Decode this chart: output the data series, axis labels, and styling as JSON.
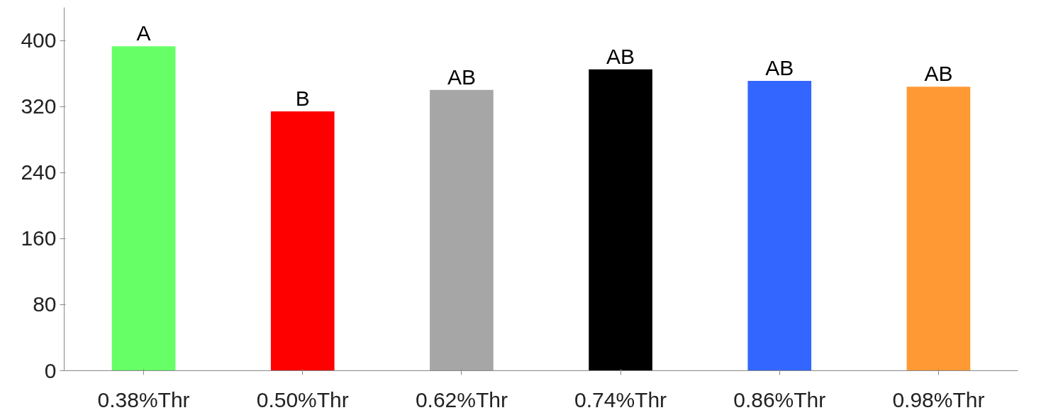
{
  "chart_data": {
    "type": "bar",
    "categories": [
      "0.38%Thr",
      "0.50%Thr",
      "0.62%Thr",
      "0.74%Thr",
      "0.86%Thr",
      "0.98%Thr"
    ],
    "values": [
      393,
      314,
      340,
      365,
      351,
      344
    ],
    "colors": [
      "#66ff66",
      "#ff0000",
      "#a6a6a6",
      "#000000",
      "#3366ff",
      "#ff9933"
    ],
    "ylim": [
      0,
      440
    ],
    "yticks": [
      0,
      80,
      160,
      240,
      320,
      400
    ],
    "grid": false,
    "annotations": [
      {
        "text": "A",
        "x": "0.38%Thr",
        "y": 393
      },
      {
        "text": "B",
        "x": "0.50%Thr",
        "y": 314
      },
      {
        "text": "AB",
        "x": "0.62%Thr",
        "y": 340
      },
      {
        "text": "AB",
        "x": "0.74%Thr",
        "y": 365
      },
      {
        "text": "AB",
        "x": "0.86%Thr",
        "y": 351
      },
      {
        "text": "AB",
        "x": "0.98%Thr",
        "y": 344
      }
    ]
  }
}
